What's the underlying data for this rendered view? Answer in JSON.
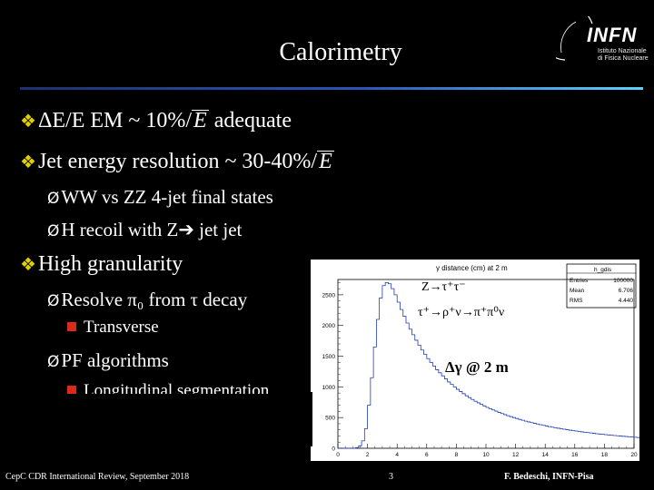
{
  "slide": {
    "title": "Calorimetry",
    "logo": {
      "name": "INFN",
      "line1": "Istituto Nazionale",
      "line2": "di Fisica Nucleare"
    },
    "bullets": [
      {
        "text_a": "ΔE/E EM ~ 10%/",
        "sqrt": "E",
        "text_b": " adequate"
      },
      {
        "text_a": "Jet energy resolution ~ 30-40%/",
        "sqrt": "E",
        "text_b": ""
      },
      {
        "text": "WW vs ZZ 4-jet final states"
      },
      {
        "text_a": "H recoil with Z",
        "text_b": " jet jet"
      },
      {
        "text": "High granularity"
      },
      {
        "text": "Resolve π₀ from τ decay"
      },
      {
        "text": "Transverse"
      },
      {
        "text": "PF algorithms"
      },
      {
        "text": "Longitudinal segmentation"
      }
    ],
    "footer": {
      "left": "CepC CDR International Review, September 2018",
      "page": "3",
      "right": "F. Bedeschi, INFN-Pisa"
    }
  },
  "chart_data": {
    "type": "bar",
    "title": "γ distance (cm) at 2 m",
    "stats": {
      "name": "h_gdis",
      "entries_label": "Entries",
      "entries": "100000",
      "mean_label": "Mean",
      "mean": "6.706",
      "rms_label": "RMS",
      "rms": "4.440"
    },
    "annotations": [
      "Z→τ⁺τ⁻",
      "τ⁺→ρ⁺ν→π⁺π⁰ν",
      "Δγ @ 2 m"
    ],
    "xlim": [
      0,
      20
    ],
    "ylim": [
      0,
      2750
    ],
    "xticks": [
      0,
      2,
      4,
      6,
      8,
      10,
      12,
      14,
      16,
      18,
      20
    ],
    "yticks": [
      0,
      500,
      1000,
      1500,
      2000,
      2500
    ],
    "bin_width": 0.2,
    "values": [
      0,
      0,
      0,
      0,
      0,
      0,
      10,
      40,
      120,
      320,
      700,
      1150,
      1650,
      2100,
      2450,
      2650,
      2700,
      2680,
      2600,
      2500,
      2380,
      2260,
      2150,
      2040,
      1940,
      1850,
      1760,
      1680,
      1600,
      1530,
      1460,
      1400,
      1340,
      1280,
      1230,
      1180,
      1130,
      1080,
      1040,
      1000,
      960,
      925,
      890,
      855,
      825,
      795,
      765,
      740,
      715,
      690,
      665,
      645,
      625,
      605,
      585,
      565,
      548,
      530,
      515,
      500,
      485,
      470,
      456,
      442,
      430,
      418,
      406,
      395,
      384,
      373,
      363,
      353,
      344,
      335,
      326,
      318,
      310,
      302,
      295,
      288,
      281,
      274,
      267,
      261,
      255,
      249,
      243,
      237,
      232,
      227,
      222,
      217,
      212,
      207,
      203,
      199,
      195,
      191,
      187,
      183,
      179,
      175,
      171,
      168,
      165,
      162,
      159,
      156,
      153,
      150,
      147,
      144,
      141,
      138,
      135,
      132,
      130,
      128,
      126,
      124,
      122,
      120,
      118,
      116,
      114,
      112,
      110,
      108,
      106,
      104,
      102,
      100,
      98,
      96,
      94,
      92,
      90,
      88,
      86,
      84,
      82,
      80,
      78,
      76,
      74,
      72,
      70,
      68,
      66,
      64,
      62,
      60,
      58,
      56,
      54,
      52,
      50,
      48,
      46,
      44,
      42,
      40,
      38,
      36,
      34,
      32,
      30,
      28,
      26,
      24,
      22,
      20,
      18,
      16,
      14,
      12,
      10,
      9,
      8,
      7,
      6,
      5,
      4,
      3,
      2,
      1,
      1,
      1,
      1,
      1,
      0,
      0,
      0,
      0,
      0,
      0,
      0,
      0,
      0,
      0,
      0,
      0,
      0,
      0,
      0,
      0,
      0,
      0,
      0,
      0,
      0,
      0,
      0,
      0,
      0,
      0,
      0,
      0,
      0,
      0,
      0,
      0,
      0,
      0,
      0,
      0,
      0,
      0,
      0,
      0,
      0,
      0,
      0,
      0
    ]
  },
  "colors": {
    "accent_bullet": "#e0d000",
    "sub_bullet": "#d92a1a",
    "histogram_line": "#1f3cb8",
    "rule_start": "#1d3170",
    "rule_end": "#5fd0ff"
  }
}
